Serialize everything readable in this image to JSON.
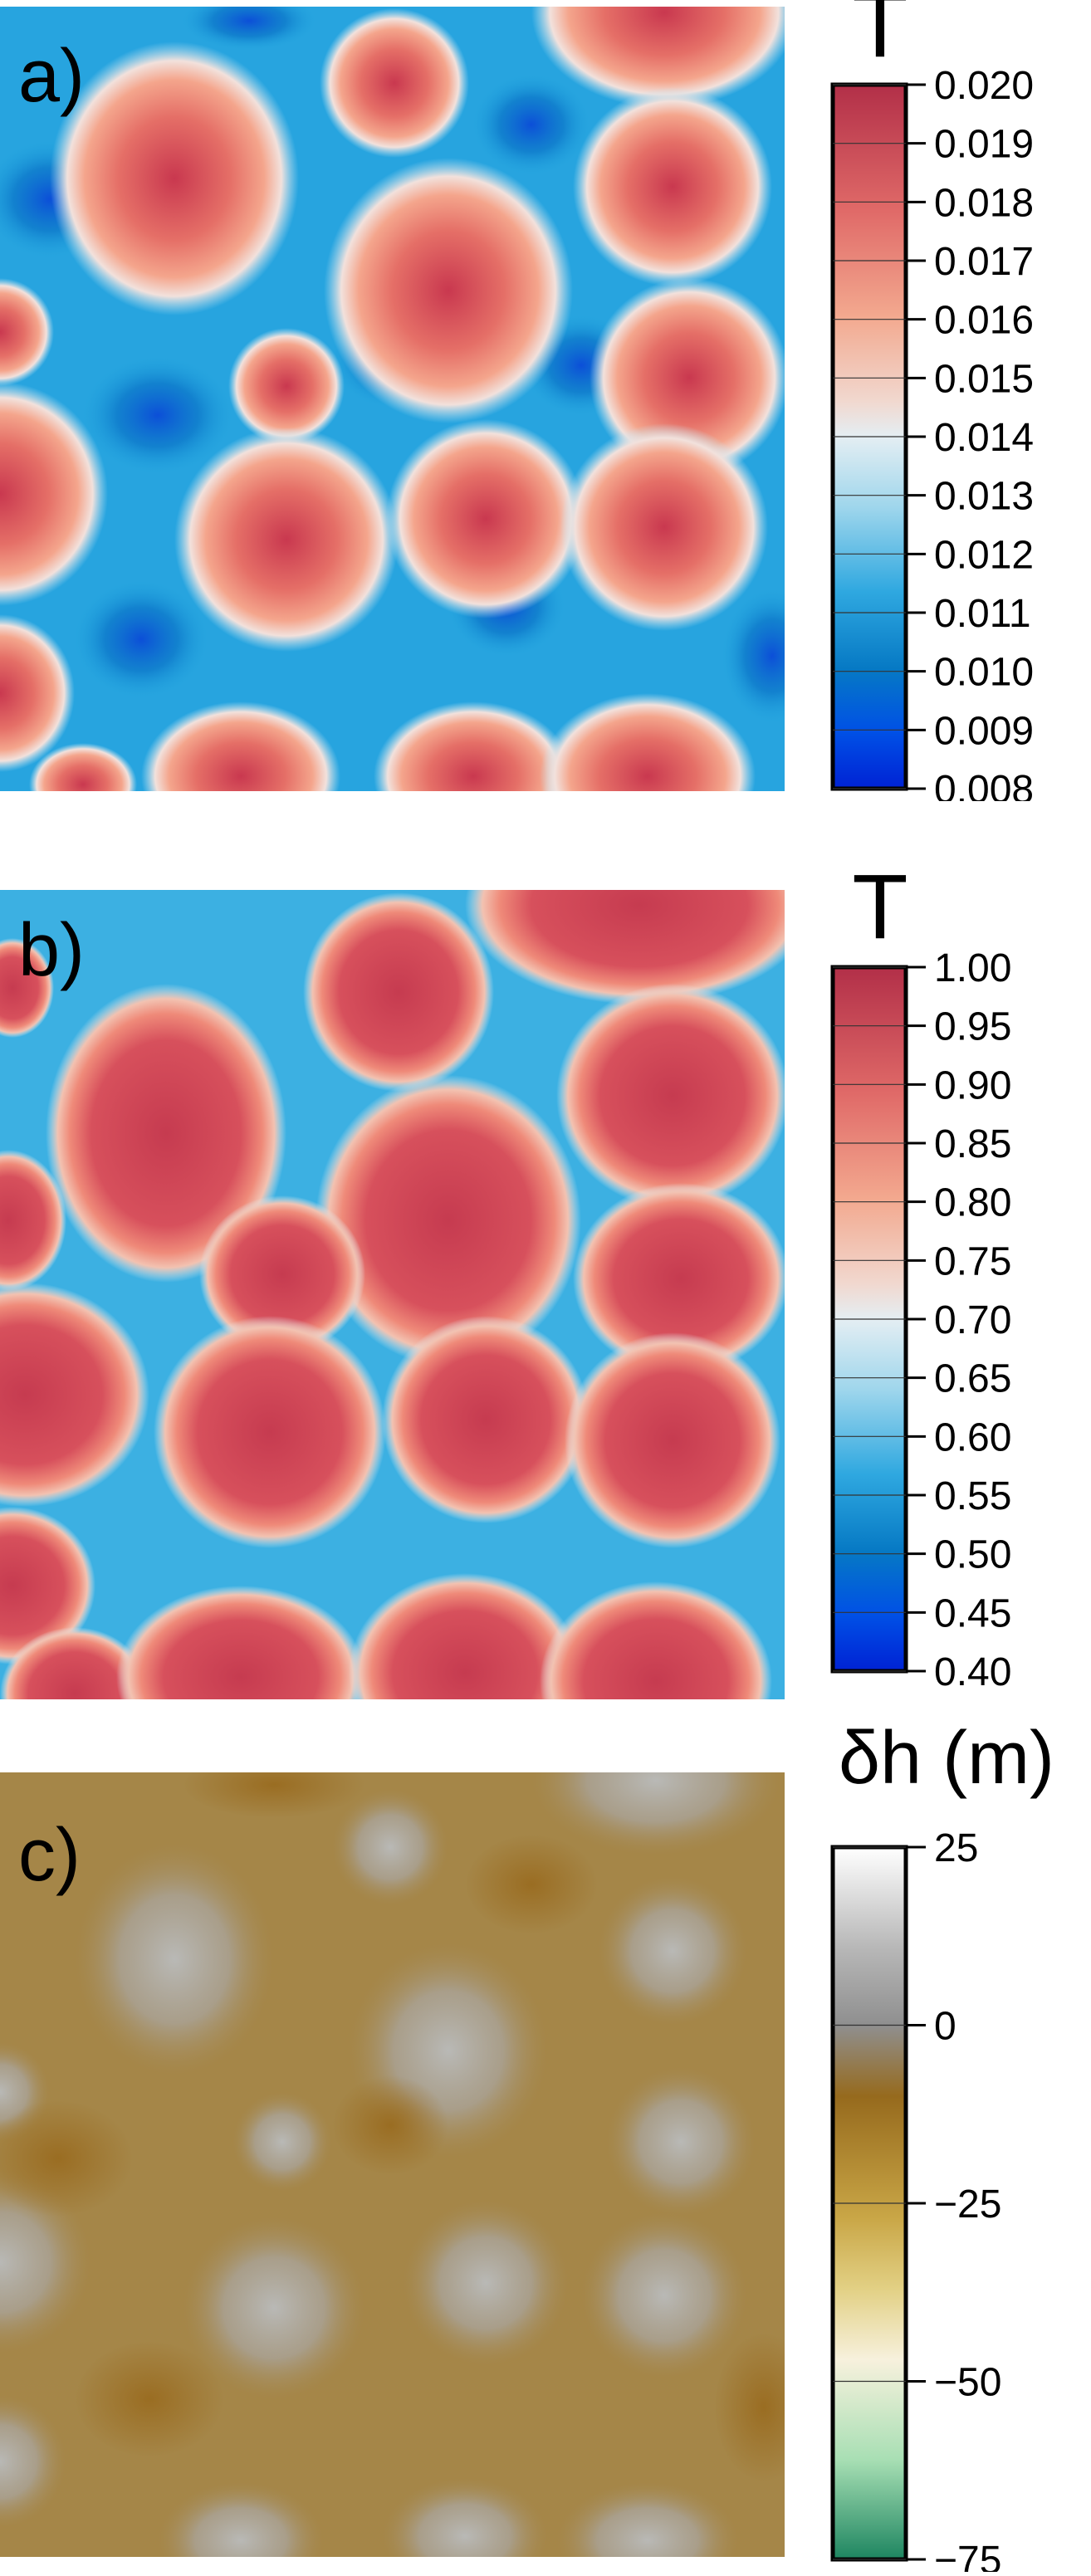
{
  "panels": [
    {
      "id": "a",
      "label": "a)",
      "colorbar_title": "T",
      "ticks": [
        "0.020",
        "0.019",
        "0.018",
        "0.017",
        "0.016",
        "0.015",
        "0.014",
        "0.013",
        "0.012",
        "0.011",
        "0.010",
        "0.009",
        "0.008"
      ],
      "colormap": [
        "#b22f48",
        "#d04e5c",
        "#ea7f75",
        "#f3a98f",
        "#f1d2c7",
        "#d7e7ef",
        "#8fcfe9",
        "#3fb0e2",
        "#1092d3",
        "#0672bf",
        "#0050e6",
        "#0025d6"
      ]
    },
    {
      "id": "b",
      "label": "b)",
      "colorbar_title": "T",
      "ticks": [
        "1.00",
        "0.95",
        "0.90",
        "0.85",
        "0.80",
        "0.75",
        "0.70",
        "0.65",
        "0.60",
        "0.55",
        "0.50",
        "0.45",
        "0.40"
      ],
      "colormap": [
        "#b22f48",
        "#d04e5c",
        "#ea7f75",
        "#f3a98f",
        "#f1d2c7",
        "#d7e7ef",
        "#8fcfe9",
        "#3fb0e2",
        "#1092d3",
        "#0672bf",
        "#0050e6",
        "#0025d6"
      ]
    },
    {
      "id": "c",
      "label": "c)",
      "colorbar_title": "δh (m)",
      "ticks": [
        "25",
        "0",
        "−25",
        "−50",
        "−75"
      ],
      "colormap": [
        "#ffffff",
        "#9a9a9a",
        "#956b1f",
        "#d3b750",
        "#f5efd9",
        "#a9dfb5",
        "#228a60"
      ]
    }
  ]
}
